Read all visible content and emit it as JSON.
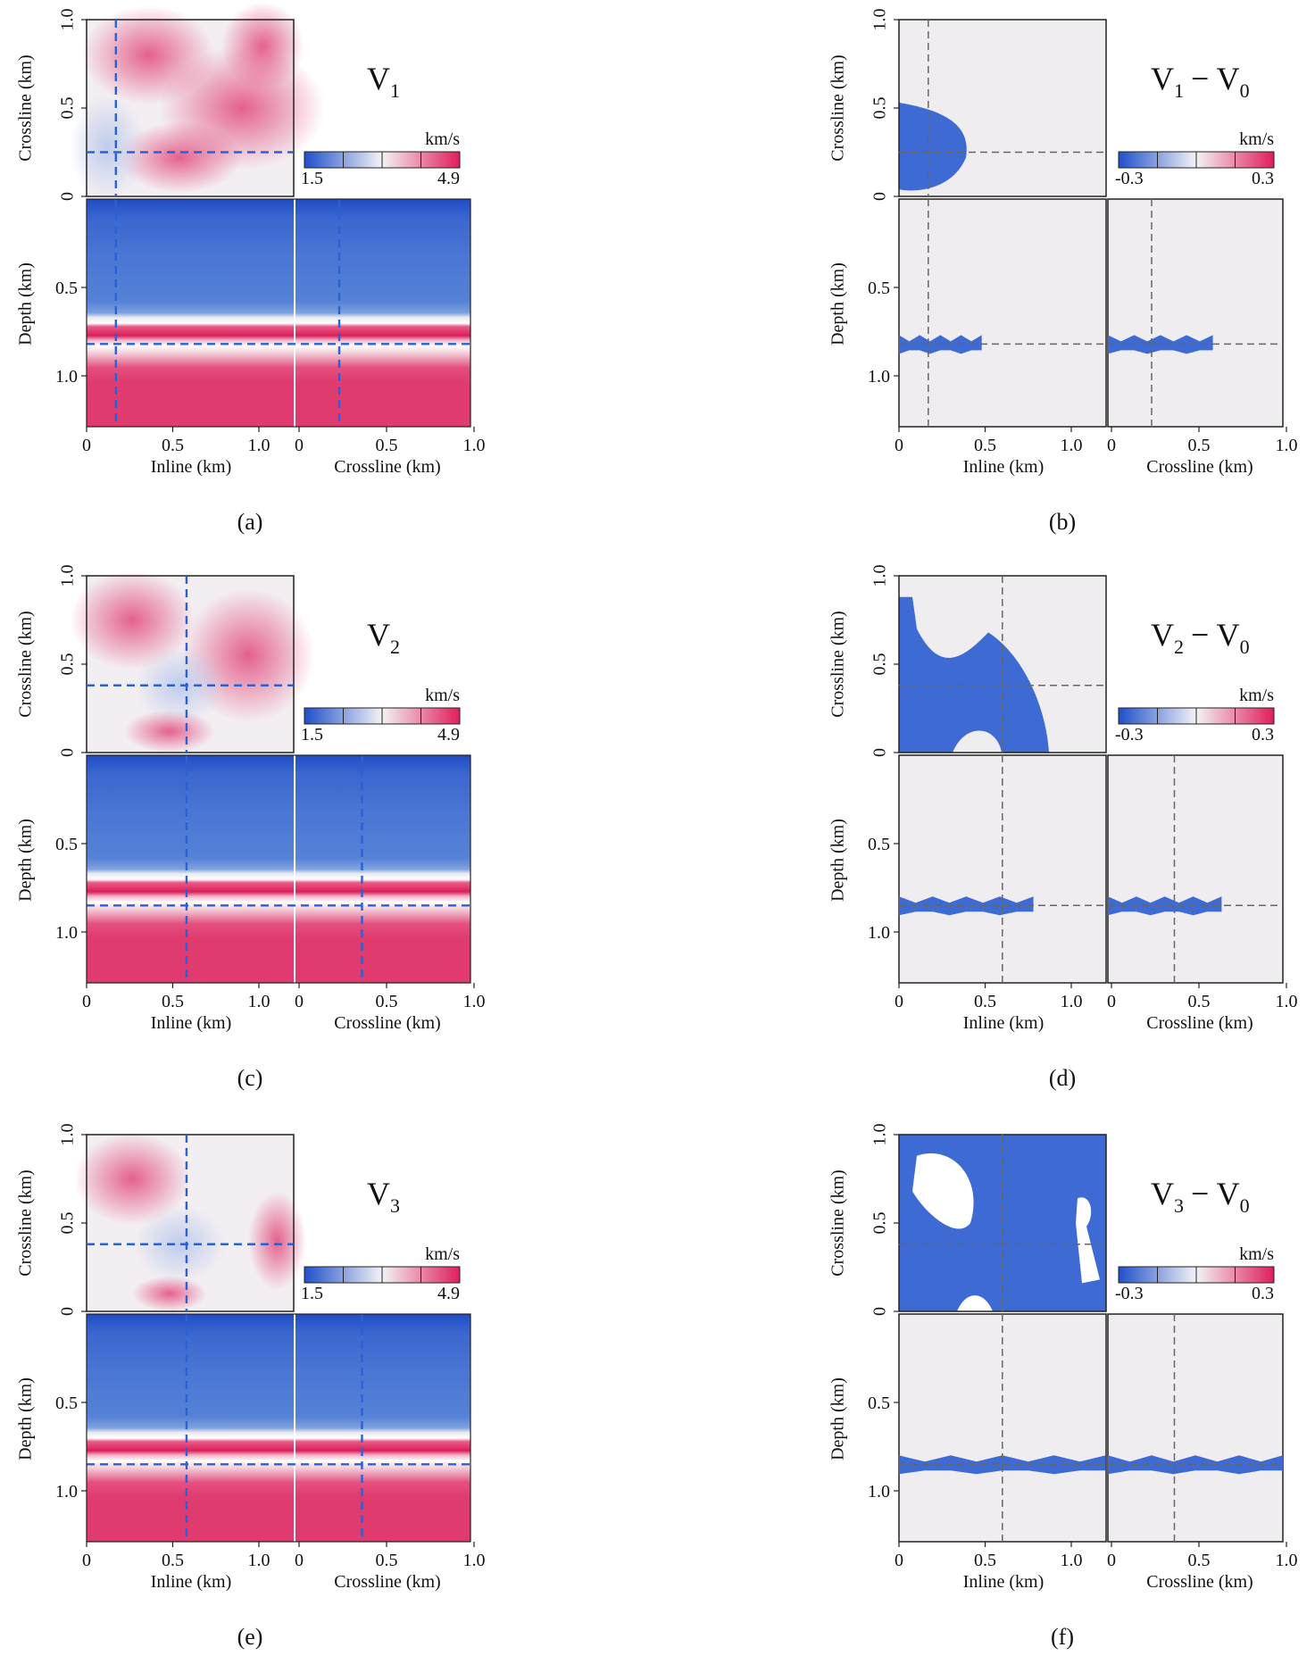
{
  "figure": {
    "panels": [
      {
        "letter": "(a)",
        "kind": "model",
        "title_main": "V",
        "title_sub": "1",
        "title_rest": "",
        "colorbar": {
          "unit": "km/s",
          "min_label": "1.5",
          "max_label": "4.9",
          "min": 1.5,
          "max": 4.9
        },
        "inline_line_km": 0.17,
        "crossline_line_km": 0.25,
        "depth_line_km": 0.82
      },
      {
        "letter": "(b)",
        "kind": "diff",
        "title_main": "V",
        "title_sub": "1",
        "title_rest": "− V",
        "title_sub2": "0",
        "colorbar": {
          "unit": "km/s",
          "min_label": "-0.3",
          "max_label": "0.3",
          "min": -0.3,
          "max": 0.3
        },
        "inline_line_km": 0.17,
        "crossline_line_km": 0.25,
        "depth_line_km": 0.82
      },
      {
        "letter": "(c)",
        "kind": "model",
        "title_main": "V",
        "title_sub": "2",
        "title_rest": "",
        "colorbar": {
          "unit": "km/s",
          "min_label": "1.5",
          "max_label": "4.9",
          "min": 1.5,
          "max": 4.9
        },
        "inline_line_km": 0.58,
        "crossline_line_km": 0.38,
        "depth_line_km": 0.85
      },
      {
        "letter": "(d)",
        "kind": "diff",
        "title_main": "V",
        "title_sub": "2",
        "title_rest": "− V",
        "title_sub2": "0",
        "colorbar": {
          "unit": "km/s",
          "min_label": "-0.3",
          "max_label": "0.3",
          "min": -0.3,
          "max": 0.3
        },
        "inline_line_km": 0.6,
        "crossline_line_km": 0.38,
        "depth_line_km": 0.85
      },
      {
        "letter": "(e)",
        "kind": "model",
        "title_main": "V",
        "title_sub": "3",
        "title_rest": "",
        "colorbar": {
          "unit": "km/s",
          "min_label": "1.5",
          "max_label": "4.9",
          "min": 1.5,
          "max": 4.9
        },
        "inline_line_km": 0.58,
        "crossline_line_km": 0.38,
        "depth_line_km": 0.85
      },
      {
        "letter": "(f)",
        "kind": "diff",
        "title_main": "V",
        "title_sub": "3",
        "title_rest": "− V",
        "title_sub2": "0",
        "colorbar": {
          "unit": "km/s",
          "min_label": "-0.3",
          "max_label": "0.3",
          "min": -0.3,
          "max": 0.3
        },
        "inline_line_km": 0.6,
        "crossline_line_km": 0.38,
        "depth_line_km": 0.85
      }
    ],
    "axis_labels": {
      "crossline": "Crossline (km)",
      "depth": "Depth (km)",
      "inline": "Inline (km)"
    },
    "ticks": {
      "crossline_y": [
        "0",
        "0.5",
        "1.0"
      ],
      "depth_y": [
        "0.5",
        "1.0"
      ],
      "inline_x": [
        "0",
        "0.5",
        "1.0"
      ],
      "crossline_x": [
        "0",
        "0.5",
        "1.0"
      ]
    },
    "colors": {
      "blue": "#2f5fc9",
      "white": "#f2f2f2",
      "pink": "#e0356e",
      "diff_blue": "#3e6ad4",
      "diff_background": "#efedef",
      "dash_model": "#2a62d6",
      "dash_diff": "#666666"
    }
  },
  "chart_data": [
    {
      "type": "heatmap",
      "title": "V1",
      "panel": "(a)",
      "xlabel": "Inline (km)",
      "ylabel": "Crossline (km)",
      "xlim": [
        0,
        1.2
      ],
      "ylim": [
        0,
        1.0
      ],
      "colorbar": {
        "unit": "km/s",
        "range": [
          1.5,
          4.9
        ]
      }
    },
    {
      "type": "heatmap",
      "title": "V1 − V0",
      "panel": "(b)",
      "xlabel": "Inline (km)",
      "ylabel": "Crossline (km)",
      "xlim": [
        0,
        1.2
      ],
      "ylim": [
        0,
        1.0
      ],
      "colorbar": {
        "unit": "km/s",
        "range": [
          -0.3,
          0.3
        ]
      }
    },
    {
      "type": "heatmap",
      "title": "V2",
      "panel": "(c)",
      "xlabel": "Inline (km)",
      "ylabel": "Crossline (km)",
      "xlim": [
        0,
        1.2
      ],
      "ylim": [
        0,
        1.0
      ],
      "colorbar": {
        "unit": "km/s",
        "range": [
          1.5,
          4.9
        ]
      }
    },
    {
      "type": "heatmap",
      "title": "V2 − V0",
      "panel": "(d)",
      "xlabel": "Inline (km)",
      "ylabel": "Crossline (km)",
      "xlim": [
        0,
        1.2
      ],
      "ylim": [
        0,
        1.0
      ],
      "colorbar": {
        "unit": "km/s",
        "range": [
          -0.3,
          0.3
        ]
      }
    },
    {
      "type": "heatmap",
      "title": "V3",
      "panel": "(e)",
      "xlabel": "Inline (km)",
      "ylabel": "Crossline (km)",
      "xlim": [
        0,
        1.2
      ],
      "ylim": [
        0,
        1.0
      ],
      "colorbar": {
        "unit": "km/s",
        "range": [
          1.5,
          4.9
        ]
      }
    },
    {
      "type": "heatmap",
      "title": "V3 − V0",
      "panel": "(f)",
      "xlabel": "Inline (km)",
      "ylabel": "Crossline (km)",
      "xlim": [
        0,
        1.2
      ],
      "ylim": [
        0,
        1.0
      ],
      "colorbar": {
        "unit": "km/s",
        "range": [
          -0.3,
          0.3
        ]
      }
    }
  ]
}
